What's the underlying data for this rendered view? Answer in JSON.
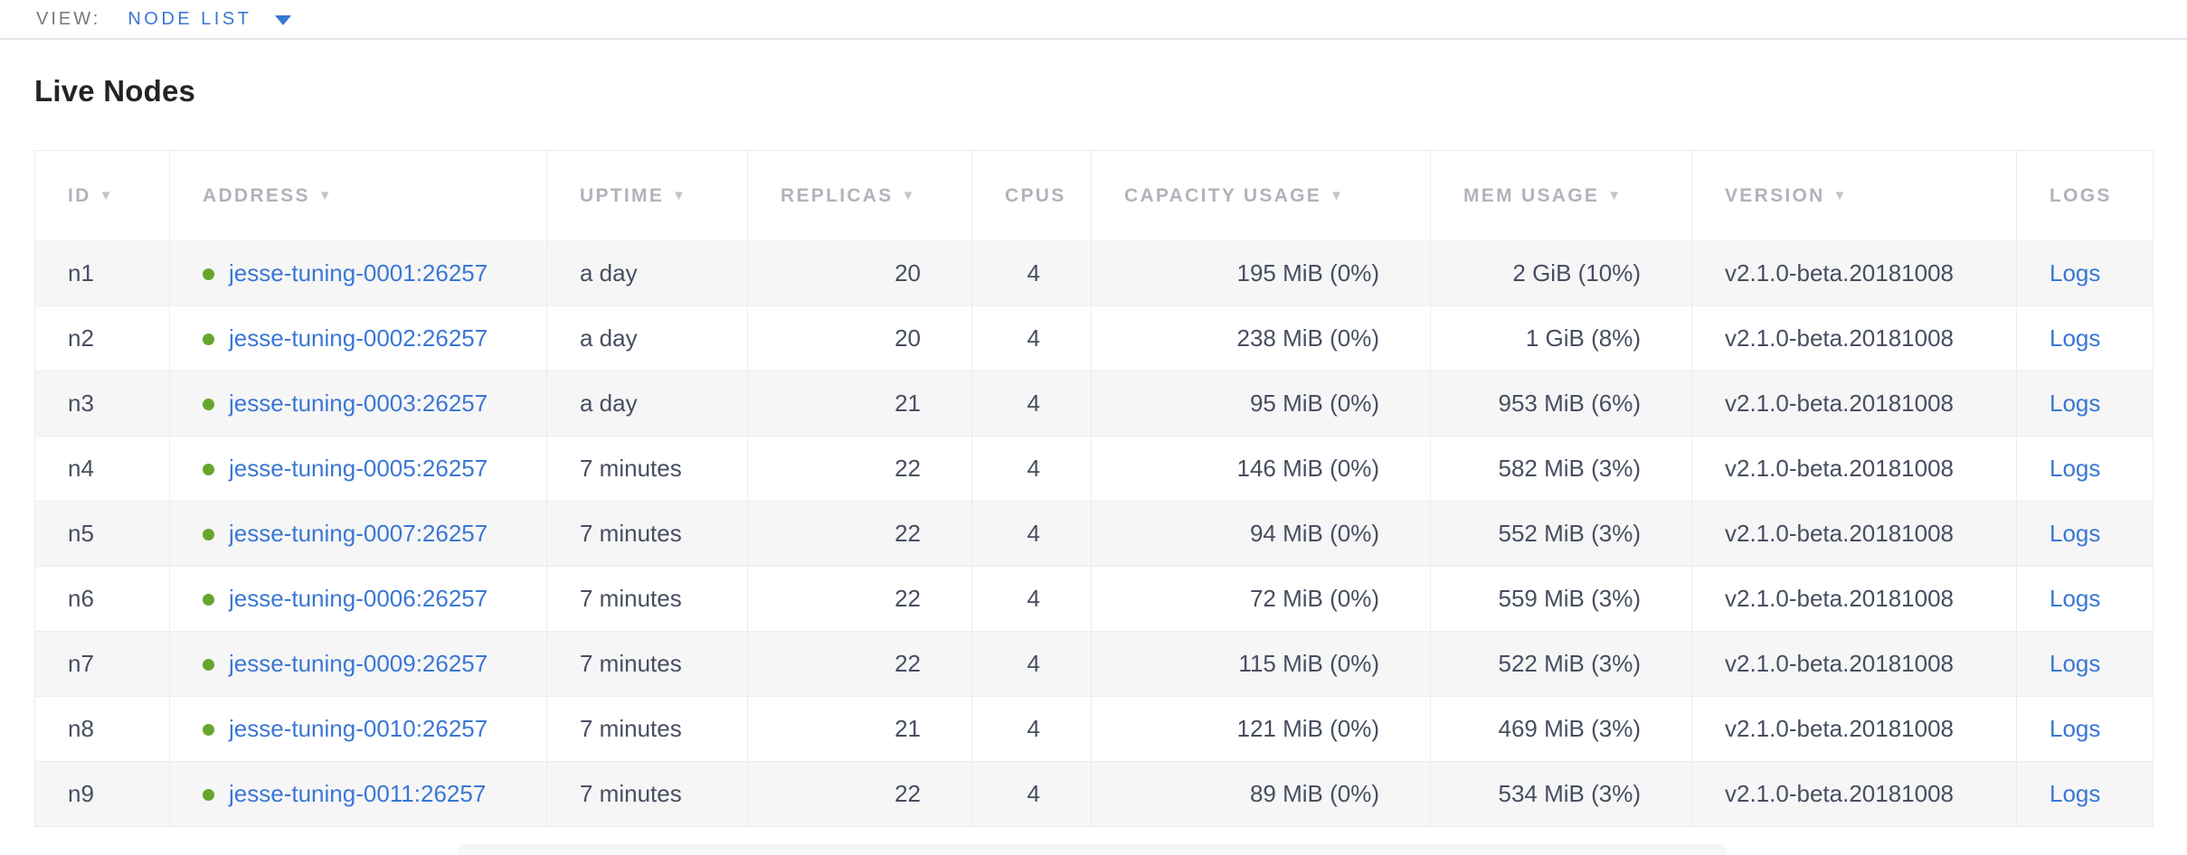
{
  "view_bar": {
    "label": "VIEW:",
    "selected": "NODE LIST"
  },
  "page": {
    "title": "Live Nodes"
  },
  "colors": {
    "link_blue": "#3a77d4",
    "healthy_green": "#67a62c"
  },
  "table": {
    "columns": [
      {
        "key": "id",
        "label": "ID",
        "sort_arrow": true,
        "align": "left"
      },
      {
        "key": "address",
        "label": "ADDRESS",
        "sort_arrow": true,
        "align": "left"
      },
      {
        "key": "uptime",
        "label": "UPTIME",
        "sort_arrow": true,
        "align": "left"
      },
      {
        "key": "replicas",
        "label": "REPLICAS",
        "sort_arrow": true,
        "align": "right"
      },
      {
        "key": "cpus",
        "label": "CPUS",
        "sort_arrow": false,
        "align": "right"
      },
      {
        "key": "capacity_usage",
        "label": "CAPACITY USAGE",
        "sort_arrow": true,
        "align": "right"
      },
      {
        "key": "mem_usage",
        "label": "MEM USAGE",
        "sort_arrow": true,
        "align": "right"
      },
      {
        "key": "version",
        "label": "VERSION",
        "sort_arrow": true,
        "align": "left"
      },
      {
        "key": "logs",
        "label": "LOGS",
        "sort_arrow": false,
        "align": "left"
      }
    ],
    "rows": [
      {
        "id": "n1",
        "status": "healthy",
        "address": "jesse-tuning-0001:26257",
        "uptime": "a day",
        "replicas": "20",
        "cpus": "4",
        "capacity_usage": "195 MiB (0%)",
        "mem_usage": "2 GiB (10%)",
        "version": "v2.1.0-beta.20181008",
        "logs": "Logs"
      },
      {
        "id": "n2",
        "status": "healthy",
        "address": "jesse-tuning-0002:26257",
        "uptime": "a day",
        "replicas": "20",
        "cpus": "4",
        "capacity_usage": "238 MiB (0%)",
        "mem_usage": "1 GiB (8%)",
        "version": "v2.1.0-beta.20181008",
        "logs": "Logs"
      },
      {
        "id": "n3",
        "status": "healthy",
        "address": "jesse-tuning-0003:26257",
        "uptime": "a day",
        "replicas": "21",
        "cpus": "4",
        "capacity_usage": "95 MiB (0%)",
        "mem_usage": "953 MiB (6%)",
        "version": "v2.1.0-beta.20181008",
        "logs": "Logs"
      },
      {
        "id": "n4",
        "status": "healthy",
        "address": "jesse-tuning-0005:26257",
        "uptime": "7 minutes",
        "replicas": "22",
        "cpus": "4",
        "capacity_usage": "146 MiB (0%)",
        "mem_usage": "582 MiB (3%)",
        "version": "v2.1.0-beta.20181008",
        "logs": "Logs"
      },
      {
        "id": "n5",
        "status": "healthy",
        "address": "jesse-tuning-0007:26257",
        "uptime": "7 minutes",
        "replicas": "22",
        "cpus": "4",
        "capacity_usage": "94 MiB (0%)",
        "mem_usage": "552 MiB (3%)",
        "version": "v2.1.0-beta.20181008",
        "logs": "Logs"
      },
      {
        "id": "n6",
        "status": "healthy",
        "address": "jesse-tuning-0006:26257",
        "uptime": "7 minutes",
        "replicas": "22",
        "cpus": "4",
        "capacity_usage": "72 MiB (0%)",
        "mem_usage": "559 MiB (3%)",
        "version": "v2.1.0-beta.20181008",
        "logs": "Logs"
      },
      {
        "id": "n7",
        "status": "healthy",
        "address": "jesse-tuning-0009:26257",
        "uptime": "7 minutes",
        "replicas": "22",
        "cpus": "4",
        "capacity_usage": "115 MiB (0%)",
        "mem_usage": "522 MiB (3%)",
        "version": "v2.1.0-beta.20181008",
        "logs": "Logs"
      },
      {
        "id": "n8",
        "status": "healthy",
        "address": "jesse-tuning-0010:26257",
        "uptime": "7 minutes",
        "replicas": "21",
        "cpus": "4",
        "capacity_usage": "121 MiB (0%)",
        "mem_usage": "469 MiB (3%)",
        "version": "v2.1.0-beta.20181008",
        "logs": "Logs"
      },
      {
        "id": "n9",
        "status": "healthy",
        "address": "jesse-tuning-0011:26257",
        "uptime": "7 minutes",
        "replicas": "22",
        "cpus": "4",
        "capacity_usage": "89 MiB (0%)",
        "mem_usage": "534 MiB (3%)",
        "version": "v2.1.0-beta.20181008",
        "logs": "Logs"
      }
    ]
  }
}
